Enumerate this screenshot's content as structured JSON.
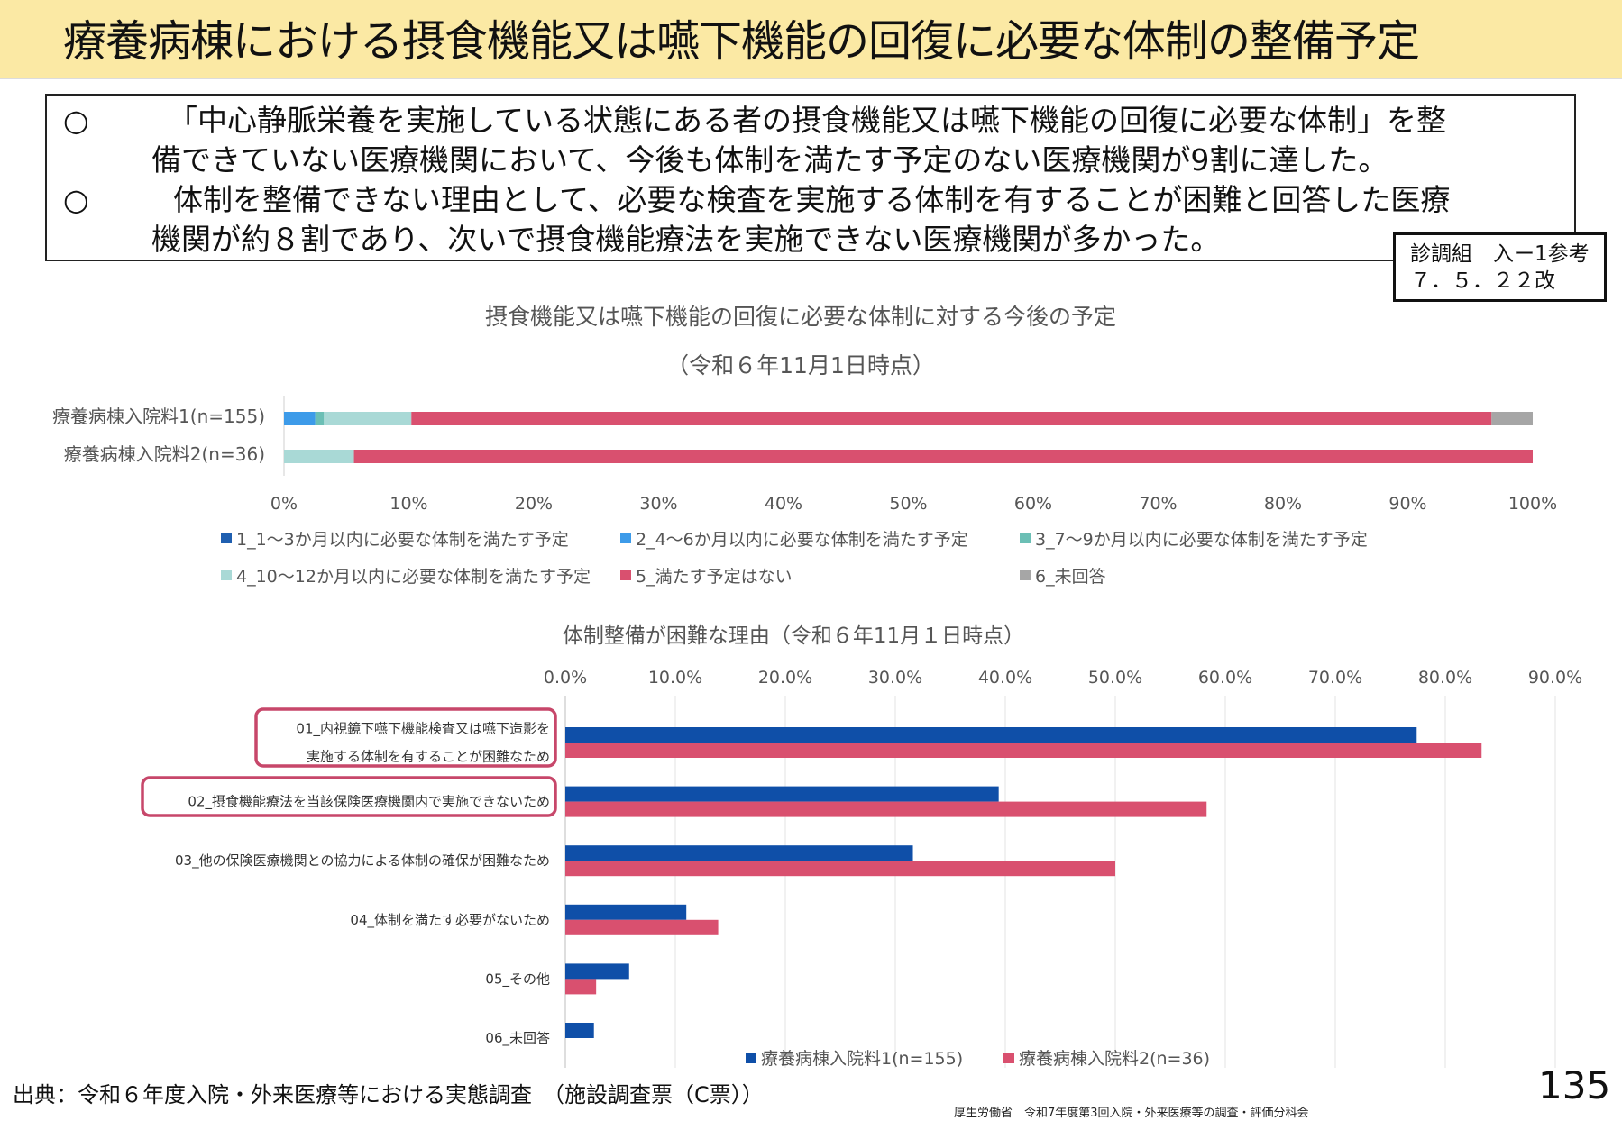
{
  "header": {
    "title": "療養病棟における摂食機能又は嚥下機能の回復に必要な体制の整備予定"
  },
  "summary": {
    "bullet_mark": "○",
    "bullet1_line1": "「中心静脈栄養を実施している状態にある者の摂食機能又は嚥下機能の回復に必要な体制」を整",
    "bullet1_line2": "備できていない医療機関において、今後も体制を満たす予定のない医療機関が9割に達した。",
    "bullet2_line1": "体制を整備できない理由として、必要な検査を実施する体制を有することが困難と回答した医療",
    "bullet2_line2": "機関が約８割であり、次いで摂食機能療法を実施できない医療機関が多かった。"
  },
  "reference": {
    "line1": "診調組　入ー1参考",
    "line2": "７．５．２２改"
  },
  "chart_data": [
    {
      "type": "bar",
      "orientation": "horizontal",
      "stacked": true,
      "title": "摂食機能又は嚥下機能の回復に必要な体制に対する今後の予定",
      "subtitle": "（令和６年11月1日時点）",
      "categories": [
        "療養病棟入院料1(n=155)",
        "療養病棟入院料2(n=36)"
      ],
      "series": [
        {
          "name": "1_1～3か月以内に必要な体制を満たす予定",
          "color": "#1f5fb0",
          "values": [
            0.0,
            0.0
          ]
        },
        {
          "name": "2_4～6か月以内に必要な体制を満たす予定",
          "color": "#3d9be9",
          "values": [
            2.5,
            0.0
          ]
        },
        {
          "name": "3_7～9か月以内に必要な体制を満たす予定",
          "color": "#6bbfb5",
          "values": [
            0.7,
            0.0
          ]
        },
        {
          "name": "4_10～12か月以内に必要な体制を満たす予定",
          "color": "#a9d9d6",
          "values": [
            7.0,
            5.6
          ]
        },
        {
          "name": "5_満たす予定はない",
          "color": "#d9506f",
          "values": [
            86.5,
            94.4
          ]
        },
        {
          "name": "6_未回答",
          "color": "#a6a6a6",
          "values": [
            3.3,
            0.0
          ]
        }
      ],
      "xlim": [
        0,
        100
      ],
      "xticks": [
        "0%",
        "10%",
        "20%",
        "30%",
        "40%",
        "50%",
        "60%",
        "70%",
        "80%",
        "90%",
        "100%"
      ],
      "legend": "bottom",
      "grid": false
    },
    {
      "type": "bar",
      "orientation": "horizontal",
      "stacked": false,
      "title": "体制整備が困難な理由（令和６年11月１日時点）",
      "categories": [
        "01_内視鏡下嚥下機能検査又は嚥下造影を\n実施する体制を有することが困難なため",
        "02_摂食機能療法を当該保険医療機関内で実施できないため",
        "03_他の保険医療機関との協力による体制の確保が困難なため",
        "04_体制を満たす必要がないため",
        "05_その他",
        "06_未回答"
      ],
      "highlighted_categories": [
        0,
        1
      ],
      "series": [
        {
          "name": "療養病棟入院料1(n=155)",
          "color": "#0f4fa8",
          "values": [
            77.4,
            39.4,
            31.6,
            11.0,
            5.8,
            2.6
          ]
        },
        {
          "name": "療養病棟入院料2(n=36)",
          "color": "#d9506f",
          "values": [
            83.3,
            58.3,
            50.0,
            13.9,
            2.8,
            0.0
          ]
        }
      ],
      "xlim": [
        0,
        90
      ],
      "xticks": [
        "0.0%",
        "10.0%",
        "20.0%",
        "30.0%",
        "40.0%",
        "50.0%",
        "60.0%",
        "70.0%",
        "80.0%",
        "90.0%"
      ],
      "axis_position": "top",
      "legend": "bottom",
      "grid": true,
      "highlight_color": "#c7476a"
    }
  ],
  "footer": {
    "source": "出典：令和６年度入院・外来医療等における実態調査　（施設調査票（C票））",
    "org": "厚生労働省　令和7年度第3回入院・外来医療等の調査・評価分科会",
    "page": "135"
  }
}
